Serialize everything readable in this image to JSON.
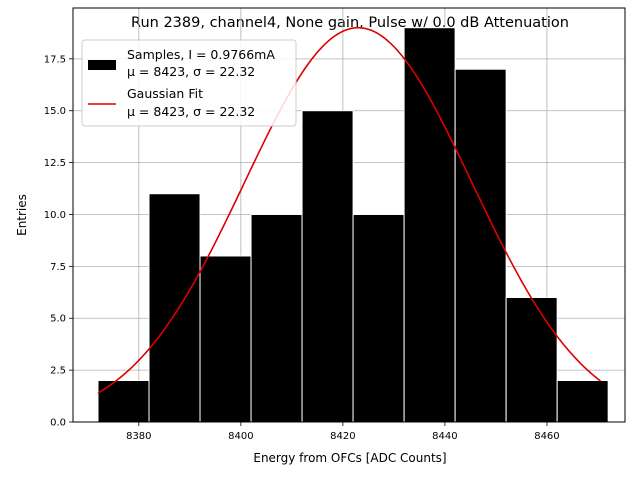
{
  "chart_data": {
    "type": "bar",
    "title": "Run 2389, channel4, None gain, Pulse w/ 0.0 dB Attenuation",
    "xlabel": "Energy from OFCs [ADC Counts]",
    "ylabel": "Entries",
    "xlim": [
      8367.1,
      8475.3
    ],
    "ylim": [
      0,
      19.95
    ],
    "xticks": [
      8380,
      8400,
      8420,
      8440,
      8460
    ],
    "xtick_labels": [
      "8380",
      "8400",
      "8420",
      "8440",
      "8460"
    ],
    "yticks": [
      0,
      2.5,
      5,
      7.5,
      10,
      12.5,
      15,
      17.5
    ],
    "ytick_labels": [
      "0.0",
      "2.5",
      "5.0",
      "7.5",
      "10.0",
      "12.5",
      "15.0",
      "17.5"
    ],
    "grid": true,
    "legend_position": "top-left",
    "histogram": {
      "bin_edges": [
        8372,
        8382,
        8392,
        8402,
        8412,
        8422,
        8432,
        8442,
        8452,
        8462,
        8472
      ],
      "counts": [
        2,
        11,
        8,
        10,
        15,
        10,
        19,
        17,
        6,
        2
      ],
      "color": "#000000",
      "edge_color": "#ffffff"
    },
    "fit": {
      "x_range": [
        8372,
        8470.5
      ],
      "mu": 8423,
      "sigma": 22.32,
      "amplitude": 19,
      "color": "#dd0000"
    },
    "legend": [
      {
        "kind": "patch",
        "color": "#000000",
        "line1": "Samples, I = 0.9766mA",
        "line2": "μ = 8423, σ = 22.32"
      },
      {
        "kind": "line",
        "color": "#dd0000",
        "line1": "Gaussian Fit",
        "line2": "μ = 8423, σ = 22.32"
      }
    ]
  }
}
